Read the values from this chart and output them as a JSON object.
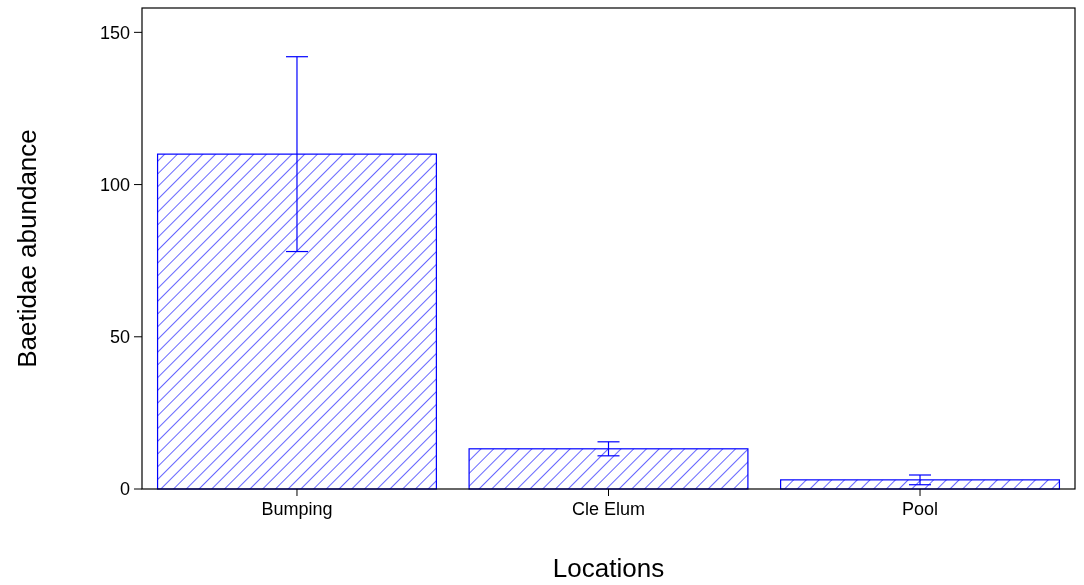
{
  "chart_data": {
    "type": "bar",
    "xlabel": "Locations",
    "ylabel": "Baetidae abundance",
    "categories": [
      "Bumping",
      "Cle Elum",
      "Pool"
    ],
    "values": [
      110,
      13.2,
      3
    ],
    "errors": [
      32,
      2.3,
      1.6
    ],
    "color": "#0000ff",
    "ylim": [
      0,
      158
    ],
    "yticks": [
      0,
      50,
      100,
      150
    ],
    "grid": false
  }
}
